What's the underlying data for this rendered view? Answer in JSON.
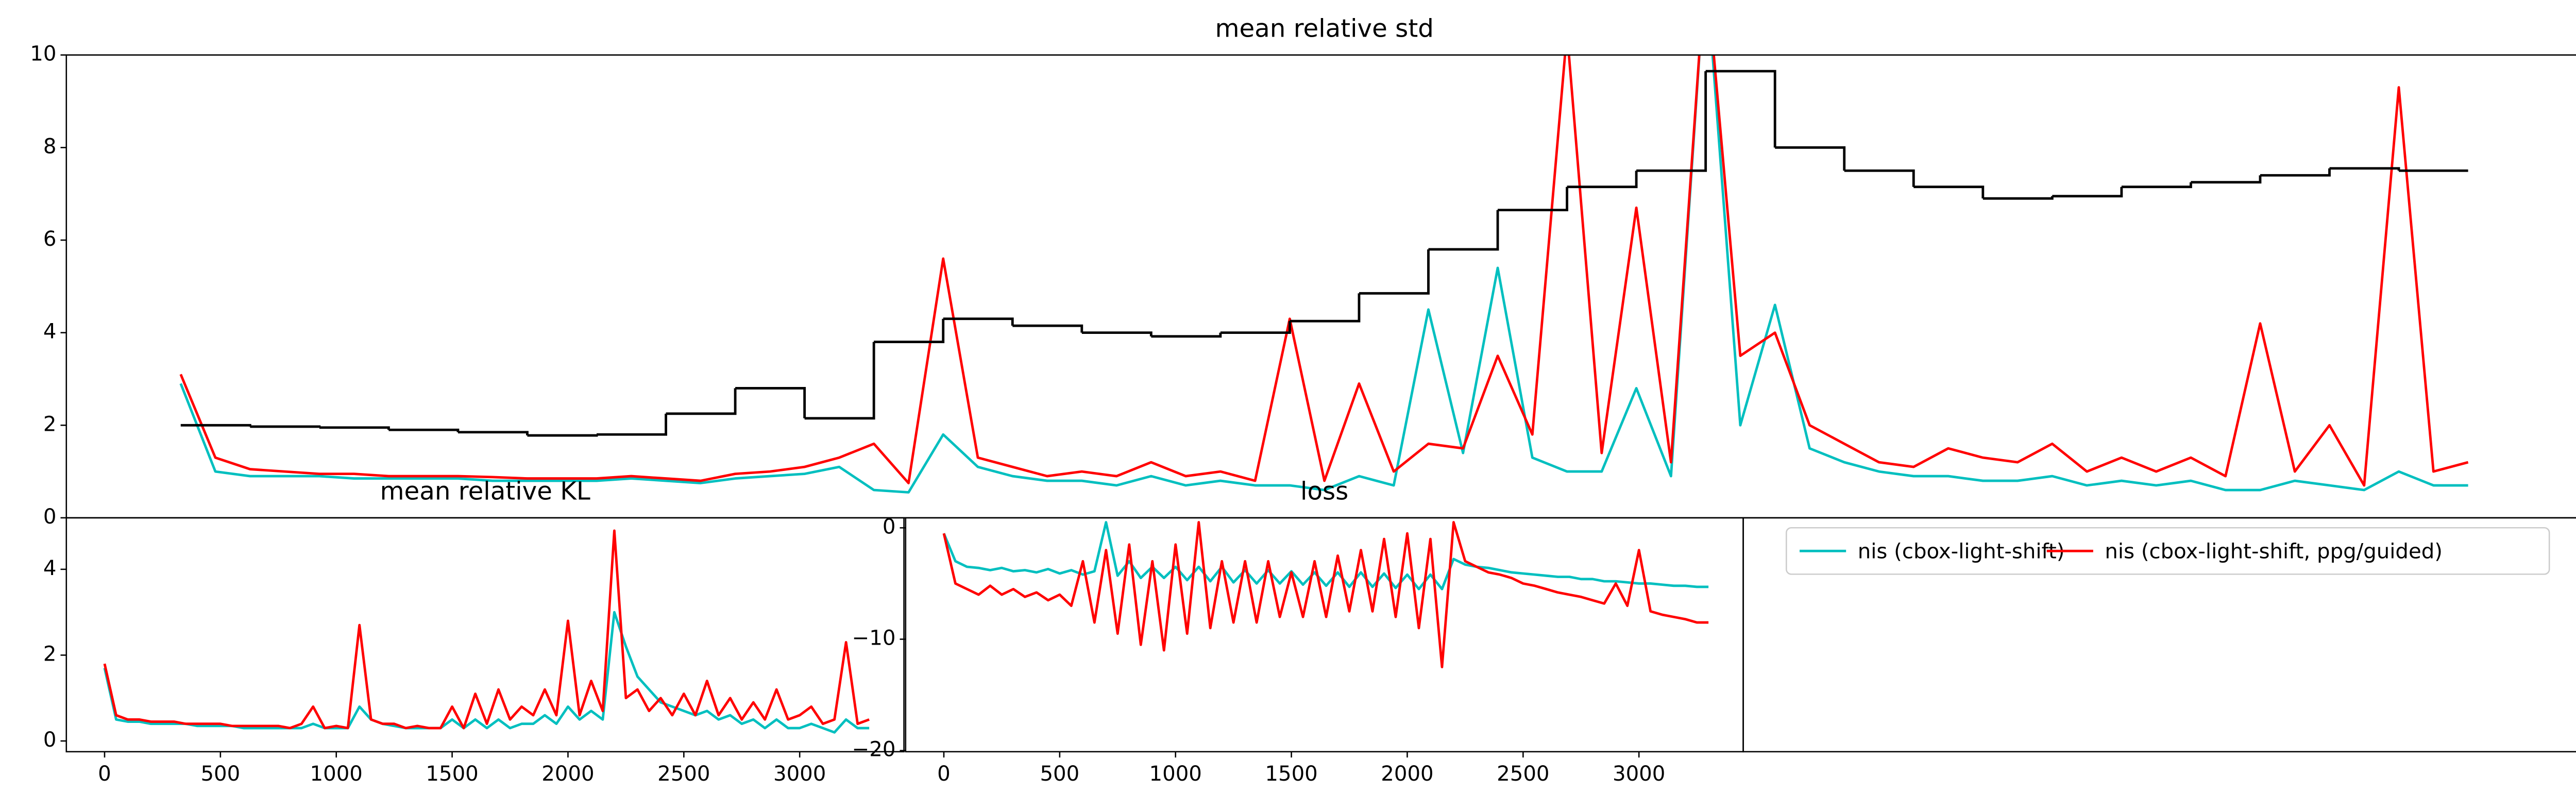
{
  "chart_data": [
    {
      "type": "line",
      "title": "mean relative std",
      "xlim": [
        -165,
        3465
      ],
      "ylim": [
        0,
        10
      ],
      "yticks": [
        0,
        2,
        4,
        6,
        8,
        10
      ],
      "x": [
        0,
        50,
        100,
        150,
        200,
        250,
        300,
        350,
        400,
        450,
        500,
        550,
        600,
        650,
        700,
        750,
        800,
        850,
        900,
        950,
        1000,
        1050,
        1100,
        1150,
        1200,
        1250,
        1300,
        1350,
        1400,
        1450,
        1500,
        1550,
        1600,
        1650,
        1700,
        1750,
        1800,
        1850,
        1900,
        1950,
        2000,
        2050,
        2100,
        2150,
        2200,
        2250,
        2300,
        2350,
        2400,
        2450,
        2500,
        2550,
        2600,
        2650,
        2700,
        2750,
        2800,
        2850,
        2900,
        2950,
        3000,
        3050,
        3100,
        3150,
        3200,
        3250,
        3300
      ],
      "series": [
        {
          "name": "nis (cbox-light-shift)",
          "color": "#00bfbf",
          "values": [
            2.9,
            1.0,
            0.9,
            0.9,
            0.9,
            0.85,
            0.85,
            0.85,
            0.85,
            0.8,
            0.8,
            0.8,
            0.8,
            0.85,
            0.8,
            0.75,
            0.85,
            0.9,
            0.95,
            1.1,
            0.6,
            0.55,
            1.8,
            1.1,
            0.9,
            0.8,
            0.8,
            0.7,
            0.9,
            0.7,
            0.8,
            0.7,
            0.7,
            0.6,
            0.9,
            0.7,
            4.5,
            1.4,
            5.4,
            1.3,
            1.0,
            1.0,
            2.8,
            0.9,
            12,
            2.0,
            4.6,
            1.5,
            1.2,
            1.0,
            0.9,
            0.9,
            0.8,
            0.8,
            0.9,
            0.7,
            0.8,
            0.7,
            0.8,
            0.6,
            0.6,
            0.8,
            0.7,
            0.6,
            1.0,
            0.7,
            0.7
          ]
        },
        {
          "name": "nis (cbox-light-shift, ppg/guided)",
          "color": "#ff0000",
          "values": [
            3.1,
            1.3,
            1.05,
            1.0,
            0.95,
            0.95,
            0.9,
            0.9,
            0.9,
            0.88,
            0.85,
            0.85,
            0.85,
            0.9,
            0.85,
            0.8,
            0.95,
            1.0,
            1.1,
            1.3,
            1.6,
            0.75,
            5.6,
            1.3,
            1.1,
            0.9,
            1.0,
            0.9,
            1.2,
            0.9,
            1.0,
            0.8,
            4.3,
            0.8,
            2.9,
            1.0,
            1.6,
            1.5,
            3.5,
            1.8,
            10.5,
            1.4,
            6.7,
            1.2,
            12,
            3.5,
            4.0,
            2.0,
            1.6,
            1.2,
            1.1,
            1.5,
            1.3,
            1.2,
            1.6,
            1.0,
            1.3,
            1.0,
            1.3,
            0.9,
            4.2,
            1.0,
            2.0,
            0.7,
            9.3,
            1.0,
            1.2
          ]
        },
        {
          "color": "#000000",
          "drawstyle": "steps-post",
          "x": [
            0,
            100,
            200,
            300,
            400,
            500,
            600,
            700,
            800,
            900,
            1000,
            1100,
            1200,
            1300,
            1400,
            1500,
            1600,
            1700,
            1800,
            1900,
            2000,
            2100,
            2200,
            2300,
            2400,
            2500,
            2600,
            2700,
            2800,
            2900,
            3000,
            3100,
            3200,
            3300
          ],
          "values": [
            2.0,
            1.97,
            1.95,
            1.9,
            1.85,
            1.78,
            1.8,
            2.25,
            2.8,
            2.15,
            3.8,
            4.3,
            4.15,
            4.0,
            3.92,
            4.0,
            4.25,
            4.85,
            5.8,
            6.65,
            7.15,
            7.5,
            9.65,
            8.0,
            7.5,
            7.15,
            6.9,
            6.95,
            7.15,
            7.25,
            7.4,
            7.55,
            7.5,
            7.5
          ]
        }
      ]
    },
    {
      "type": "line",
      "title": "mean relative KL",
      "xlim": [
        -165,
        3450
      ],
      "xticks": [
        0,
        500,
        1000,
        1500,
        2000,
        2500,
        3000
      ],
      "ylim": [
        -0.25,
        5.2
      ],
      "yticks": [
        0,
        2,
        4
      ],
      "x": [
        0,
        50,
        100,
        150,
        200,
        250,
        300,
        350,
        400,
        450,
        500,
        550,
        600,
        650,
        700,
        750,
        800,
        850,
        900,
        950,
        1000,
        1050,
        1100,
        1150,
        1200,
        1250,
        1300,
        1350,
        1400,
        1450,
        1500,
        1550,
        1600,
        1650,
        1700,
        1750,
        1800,
        1850,
        1900,
        1950,
        2000,
        2050,
        2100,
        2150,
        2200,
        2250,
        2300,
        2350,
        2400,
        2450,
        2500,
        2550,
        2600,
        2650,
        2700,
        2750,
        2800,
        2850,
        2900,
        2950,
        3000,
        3050,
        3100,
        3150,
        3200,
        3250,
        3300
      ],
      "series": [
        {
          "color": "#00bfbf",
          "values": [
            1.7,
            0.5,
            0.45,
            0.45,
            0.4,
            0.4,
            0.4,
            0.4,
            0.35,
            0.35,
            0.35,
            0.35,
            0.3,
            0.3,
            0.3,
            0.3,
            0.3,
            0.3,
            0.4,
            0.3,
            0.3,
            0.3,
            0.8,
            0.5,
            0.4,
            0.35,
            0.3,
            0.3,
            0.3,
            0.3,
            0.5,
            0.3,
            0.5,
            0.3,
            0.5,
            0.3,
            0.4,
            0.4,
            0.6,
            0.4,
            0.8,
            0.5,
            0.7,
            0.5,
            3.0,
            2.2,
            1.5,
            1.2,
            0.9,
            0.8,
            0.7,
            0.6,
            0.7,
            0.5,
            0.6,
            0.4,
            0.5,
            0.3,
            0.5,
            0.3,
            0.3,
            0.4,
            0.3,
            0.2,
            0.5,
            0.3,
            0.3
          ]
        },
        {
          "color": "#ff0000",
          "values": [
            1.8,
            0.6,
            0.5,
            0.5,
            0.45,
            0.45,
            0.45,
            0.4,
            0.4,
            0.4,
            0.4,
            0.35,
            0.35,
            0.35,
            0.35,
            0.35,
            0.3,
            0.4,
            0.8,
            0.3,
            0.35,
            0.3,
            2.7,
            0.5,
            0.4,
            0.4,
            0.3,
            0.35,
            0.3,
            0.3,
            0.8,
            0.3,
            1.1,
            0.4,
            1.2,
            0.5,
            0.8,
            0.6,
            1.2,
            0.6,
            2.8,
            0.6,
            1.4,
            0.7,
            4.9,
            1.0,
            1.2,
            0.7,
            1.0,
            0.6,
            1.1,
            0.6,
            1.4,
            0.6,
            1.0,
            0.5,
            0.9,
            0.5,
            1.2,
            0.5,
            0.6,
            0.8,
            0.4,
            0.5,
            2.3,
            0.4,
            0.5
          ]
        }
      ]
    },
    {
      "type": "line",
      "title": "loss",
      "xlim": [
        -165,
        3450
      ],
      "xticks": [
        0,
        500,
        1000,
        1500,
        2000,
        2500,
        3000
      ],
      "ylim": [
        -20.1,
        0.9
      ],
      "yticks": [
        {
          "value": -20,
          "label": "−20"
        },
        {
          "value": -10,
          "label": "−10"
        },
        0
      ],
      "x": [
        0,
        50,
        100,
        150,
        200,
        250,
        300,
        350,
        400,
        450,
        500,
        550,
        600,
        650,
        700,
        750,
        800,
        850,
        900,
        950,
        1000,
        1050,
        1100,
        1150,
        1200,
        1250,
        1300,
        1350,
        1400,
        1450,
        1500,
        1550,
        1600,
        1650,
        1700,
        1750,
        1800,
        1850,
        1900,
        1950,
        2000,
        2050,
        2100,
        2150,
        2200,
        2250,
        2300,
        2350,
        2400,
        2450,
        2500,
        2550,
        2600,
        2650,
        2700,
        2750,
        2800,
        2850,
        2900,
        2950,
        3000,
        3050,
        3100,
        3150,
        3200,
        3250,
        3300
      ],
      "series": [
        {
          "color": "#00bfbf",
          "values": [
            -0.5,
            -3,
            -3.5,
            -3.6,
            -3.8,
            -3.6,
            -3.9,
            -3.8,
            -4.0,
            -3.7,
            -4.1,
            -3.8,
            -4.2,
            -3.9,
            0.5,
            -4.3,
            -3.0,
            -4.5,
            -3.5,
            -4.5,
            -3.5,
            -4.7,
            -3.5,
            -4.8,
            -3.5,
            -4.9,
            -3.8,
            -5.0,
            -3.8,
            -5.0,
            -3.9,
            -5.1,
            -4.0,
            -5.2,
            -4.0,
            -5.3,
            -4.0,
            -5.3,
            -4.1,
            -5.4,
            -4.2,
            -5.5,
            -4.2,
            -5.5,
            -2.8,
            -3.3,
            -3.5,
            -3.6,
            -3.8,
            -4.0,
            -4.1,
            -4.2,
            -4.3,
            -4.4,
            -4.4,
            -4.6,
            -4.6,
            -4.8,
            -4.8,
            -4.9,
            -5.0,
            -5.0,
            -5.1,
            -5.2,
            -5.2,
            -5.3,
            -5.3
          ]
        },
        {
          "color": "#ff0000",
          "values": [
            -0.5,
            -5,
            -5.5,
            -6,
            -5.2,
            -6,
            -5.5,
            -6.2,
            -5.8,
            -6.5,
            -6,
            -7,
            -3,
            -8.5,
            -2,
            -9.5,
            -1.5,
            -10.5,
            -3,
            -11,
            -1.5,
            -9.5,
            0.5,
            -9,
            -3,
            -8.5,
            -3,
            -8.5,
            -3,
            -8,
            -4,
            -8,
            -3,
            -8,
            -2.5,
            -7.5,
            -2,
            -7.5,
            -1,
            -8,
            -0.5,
            -9,
            -1,
            -12.5,
            0.5,
            -3,
            -3.5,
            -4,
            -4.2,
            -4.5,
            -5,
            -5.2,
            -5.5,
            -5.8,
            -6,
            -6.2,
            -6.5,
            -6.8,
            -5,
            -7,
            -2,
            -7.5,
            -7.8,
            -8,
            -8.2,
            -8.5,
            -8.5
          ]
        }
      ]
    }
  ]
}
